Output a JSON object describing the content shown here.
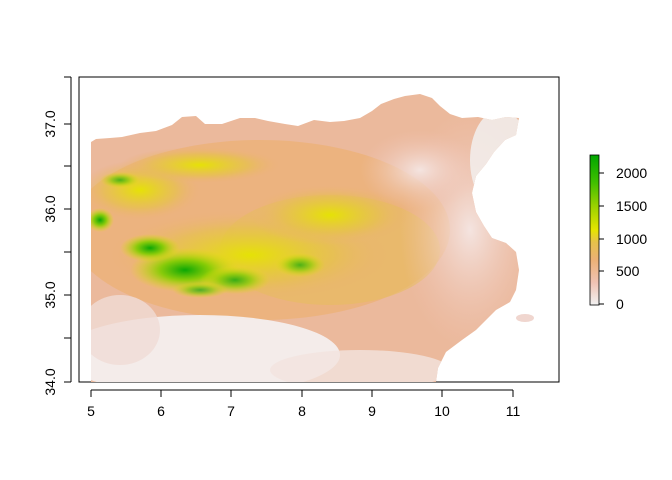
{
  "map": {
    "type": "raster-elevation",
    "x_ticks": [
      "5",
      "6",
      "7",
      "8",
      "9",
      "10",
      "11"
    ],
    "y_ticks": [
      "34.0",
      "35.0",
      "36.0",
      "37.0"
    ],
    "x_range": [
      4.83,
      11.68
    ],
    "y_range": [
      34.0,
      37.5
    ],
    "legend": {
      "ticks": [
        "0",
        "500",
        "1000",
        "1500",
        "2000"
      ],
      "range": [
        0,
        2250
      ],
      "colors": [
        "#f2f2f2",
        "#efc2b3",
        "#ecb176",
        "#e6c24a",
        "#e5e400",
        "#9ad200",
        "#3fbf00",
        "#00a600"
      ],
      "placement": "right"
    }
  }
}
